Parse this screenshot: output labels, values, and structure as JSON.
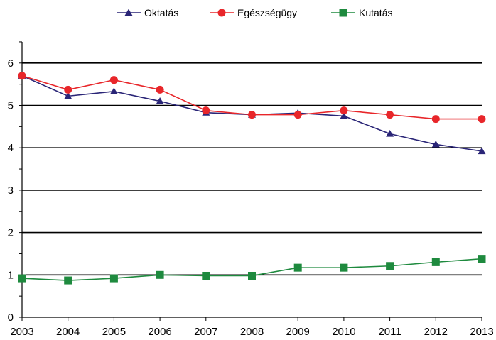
{
  "chart_data": {
    "type": "line",
    "categories": [
      "2003",
      "2004",
      "2005",
      "2006",
      "2007",
      "2008",
      "2009",
      "2010",
      "2011",
      "2012",
      "2013"
    ],
    "ylim": [
      0,
      6.5
    ],
    "yticks": [
      0,
      1,
      2,
      3,
      4,
      5,
      6
    ],
    "grid": true,
    "legend_position": "top",
    "series": [
      {
        "name": "Oktatás",
        "color": "#2a2577",
        "marker": "triangle",
        "values": [
          5.7,
          5.22,
          5.33,
          5.1,
          4.83,
          4.78,
          4.82,
          4.75,
          4.33,
          4.08,
          3.92
        ]
      },
      {
        "name": "Egészségügy",
        "color": "#e8262a",
        "marker": "circle",
        "values": [
          5.7,
          5.37,
          5.6,
          5.37,
          4.88,
          4.78,
          4.78,
          4.88,
          4.78,
          4.68,
          4.68
        ]
      },
      {
        "name": "Kutatás",
        "color": "#1e8a3e",
        "marker": "square",
        "values": [
          0.92,
          0.87,
          0.92,
          1.0,
          0.98,
          0.98,
          1.17,
          1.17,
          1.21,
          1.3,
          1.38
        ]
      }
    ]
  }
}
